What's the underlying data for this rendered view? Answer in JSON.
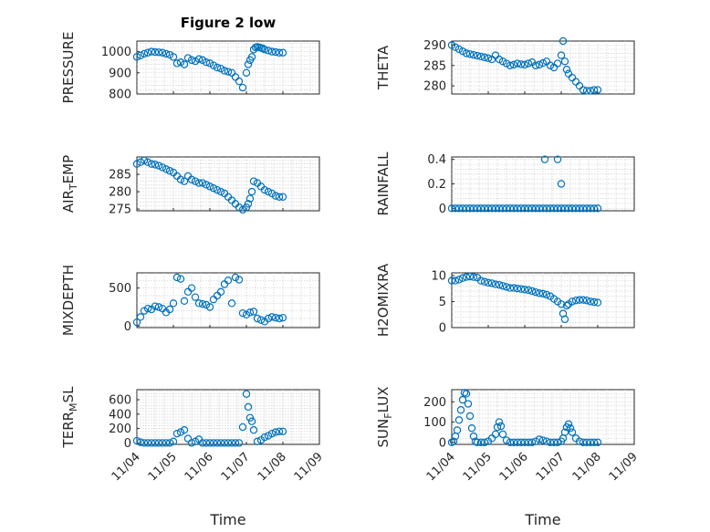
{
  "figure": {
    "title": "Figure 2 low",
    "x_label": "Time",
    "x_ticks": [
      "11/04",
      "11/05",
      "11/06",
      "11/07",
      "11/08",
      "11/09"
    ],
    "marker_color": "#0072bd"
  },
  "chart_data": [
    {
      "type": "scatter",
      "title": "Figure 2 low",
      "ylabel": "PRESSURE",
      "ylim": [
        800,
        1050
      ],
      "yticks": [
        800,
        900,
        1000
      ],
      "xlabel": "",
      "xlim": [
        0,
        5
      ],
      "x": [
        0.0,
        0.1,
        0.2,
        0.3,
        0.4,
        0.5,
        0.6,
        0.7,
        0.8,
        0.9,
        1.0,
        1.1,
        1.2,
        1.3,
        1.4,
        1.5,
        1.6,
        1.7,
        1.8,
        1.9,
        2.0,
        2.1,
        2.2,
        2.3,
        2.4,
        2.5,
        2.6,
        2.7,
        2.8,
        2.9,
        3.0,
        3.05,
        3.1,
        3.15,
        3.2,
        3.25,
        3.3,
        3.35,
        3.4,
        3.45,
        3.5,
        3.6,
        3.7,
        3.8,
        3.9,
        4.0
      ],
      "y": [
        975,
        982,
        990,
        995,
        1000,
        998,
        997,
        995,
        990,
        985,
        975,
        945,
        950,
        940,
        970,
        960,
        955,
        965,
        960,
        950,
        945,
        935,
        925,
        920,
        910,
        905,
        900,
        880,
        860,
        830,
        900,
        940,
        960,
        975,
        1010,
        1020,
        1022,
        1020,
        1018,
        1015,
        1010,
        1005,
        1000,
        998,
        995,
        995
      ]
    },
    {
      "type": "scatter",
      "ylabel": "THETA",
      "ylim": [
        278,
        291
      ],
      "yticks": [
        280,
        285,
        290
      ],
      "xlim": [
        0,
        5
      ],
      "x": [
        0.0,
        0.1,
        0.2,
        0.3,
        0.4,
        0.5,
        0.6,
        0.7,
        0.8,
        0.9,
        1.0,
        1.1,
        1.2,
        1.3,
        1.4,
        1.5,
        1.6,
        1.7,
        1.8,
        1.9,
        2.0,
        2.1,
        2.2,
        2.3,
        2.4,
        2.5,
        2.6,
        2.7,
        2.8,
        2.9,
        3.0,
        3.05,
        3.1,
        3.15,
        3.2,
        3.3,
        3.4,
        3.5,
        3.6,
        3.7,
        3.8,
        3.9,
        4.0
      ],
      "y": [
        290,
        289.5,
        289,
        288.5,
        288,
        287.8,
        287.6,
        287.4,
        287.2,
        287,
        286.8,
        286.5,
        287.5,
        286.5,
        286,
        285.5,
        285,
        285.2,
        285.5,
        285.3,
        285.2,
        285.5,
        285.8,
        285,
        285.2,
        285.6,
        286,
        285,
        284.5,
        285.5,
        287.5,
        291,
        286,
        284,
        283,
        282,
        281,
        280,
        279,
        278.8,
        278.8,
        279,
        279
      ]
    },
    {
      "type": "scatter",
      "ylabel": "AIR_TEMP",
      "ylim": [
        274.5,
        290
      ],
      "yticks": [
        275,
        280,
        285
      ],
      "xlim": [
        0,
        5
      ],
      "x": [
        0.0,
        0.1,
        0.2,
        0.3,
        0.4,
        0.5,
        0.6,
        0.7,
        0.8,
        0.9,
        1.0,
        1.1,
        1.2,
        1.3,
        1.4,
        1.5,
        1.6,
        1.7,
        1.8,
        1.9,
        2.0,
        2.1,
        2.2,
        2.3,
        2.4,
        2.5,
        2.6,
        2.7,
        2.8,
        2.9,
        3.0,
        3.05,
        3.1,
        3.15,
        3.2,
        3.3,
        3.4,
        3.5,
        3.6,
        3.7,
        3.8,
        3.9,
        4.0
      ],
      "y": [
        288,
        288.5,
        289,
        288.5,
        288,
        287.8,
        287.5,
        287,
        286.5,
        286,
        285.5,
        284.5,
        283.5,
        283,
        284.5,
        283.5,
        283,
        282.5,
        282.5,
        282,
        281.5,
        281,
        280.5,
        280,
        279.5,
        278.5,
        277.5,
        276.5,
        275.5,
        274.8,
        275.5,
        276.5,
        278,
        280,
        283,
        282.5,
        281.5,
        280.5,
        280,
        279.5,
        278.8,
        278.5,
        278.5
      ]
    },
    {
      "type": "scatter",
      "ylabel": "RAINFALL",
      "ylim": [
        -0.02,
        0.42
      ],
      "yticks": [
        0,
        0.2,
        0.4
      ],
      "xlim": [
        0,
        5
      ],
      "x": [
        0.0,
        0.1,
        0.2,
        0.3,
        0.4,
        0.5,
        0.6,
        0.7,
        0.8,
        0.9,
        1.0,
        1.1,
        1.2,
        1.3,
        1.4,
        1.5,
        1.6,
        1.7,
        1.8,
        1.9,
        2.0,
        2.1,
        2.2,
        2.3,
        2.4,
        2.5,
        2.6,
        2.7,
        2.8,
        2.9,
        3.0,
        3.1,
        3.2,
        3.3,
        3.4,
        3.5,
        3.6,
        3.7,
        3.8,
        3.9,
        4.0,
        2.55,
        2.9,
        3.0
      ],
      "y": [
        0,
        0,
        0,
        0,
        0,
        0,
        0,
        0,
        0,
        0,
        0,
        0,
        0,
        0,
        0,
        0,
        0,
        0,
        0,
        0,
        0,
        0,
        0,
        0,
        0,
        0,
        0,
        0,
        0,
        0,
        0,
        0,
        0,
        0,
        0,
        0,
        0,
        0,
        0,
        0,
        0,
        0.4,
        0.4,
        0.2
      ]
    },
    {
      "type": "scatter",
      "ylabel": "MIXDEPTH",
      "ylim": [
        -20,
        700
      ],
      "yticks": [
        0,
        500
      ],
      "xlim": [
        0,
        5
      ],
      "x": [
        0.0,
        0.1,
        0.2,
        0.3,
        0.4,
        0.5,
        0.6,
        0.7,
        0.8,
        0.9,
        1.0,
        1.1,
        1.2,
        1.3,
        1.4,
        1.5,
        1.6,
        1.7,
        1.8,
        1.9,
        2.0,
        2.1,
        2.2,
        2.3,
        2.4,
        2.5,
        2.6,
        2.7,
        2.8,
        2.9,
        3.0,
        3.1,
        3.2,
        3.3,
        3.4,
        3.5,
        3.6,
        3.7,
        3.8,
        3.9,
        4.0
      ],
      "y": [
        50,
        120,
        200,
        230,
        220,
        260,
        250,
        230,
        180,
        220,
        300,
        640,
        620,
        330,
        450,
        500,
        380,
        300,
        290,
        280,
        250,
        350,
        400,
        450,
        550,
        600,
        300,
        640,
        610,
        170,
        150,
        180,
        190,
        100,
        80,
        60,
        100,
        120,
        110,
        100,
        110
      ]
    },
    {
      "type": "scatter",
      "ylabel": "H2OMIXRA",
      "ylim": [
        0,
        10.5
      ],
      "yticks": [
        0,
        5,
        10
      ],
      "xlim": [
        0,
        5
      ],
      "x": [
        0.0,
        0.1,
        0.2,
        0.3,
        0.4,
        0.5,
        0.6,
        0.7,
        0.8,
        0.9,
        1.0,
        1.1,
        1.2,
        1.3,
        1.4,
        1.5,
        1.6,
        1.7,
        1.8,
        1.9,
        2.0,
        2.1,
        2.2,
        2.3,
        2.4,
        2.5,
        2.6,
        2.7,
        2.8,
        2.9,
        3.0,
        3.05,
        3.1,
        3.15,
        3.2,
        3.3,
        3.4,
        3.5,
        3.6,
        3.7,
        3.8,
        3.9,
        4.0
      ],
      "y": [
        9,
        9,
        9.2,
        9.5,
        9.7,
        9.8,
        9.7,
        9.6,
        9,
        8.8,
        8.6,
        8.5,
        8.3,
        8.2,
        8.0,
        7.8,
        7.6,
        7.6,
        7.5,
        7.4,
        7.3,
        7.2,
        7.0,
        6.8,
        6.6,
        6.5,
        6.3,
        6.0,
        5.5,
        5.0,
        4.5,
        2.7,
        1.6,
        4.2,
        4.5,
        5.0,
        5.2,
        5.3,
        5.3,
        5.2,
        5.0,
        4.9,
        4.8
      ]
    },
    {
      "type": "scatter",
      "ylabel": "TERR_MSL",
      "ylim": [
        -20,
        740
      ],
      "yticks": [
        0,
        200,
        400,
        600
      ],
      "xlim": [
        0,
        5
      ],
      "x": [
        0.0,
        0.1,
        0.2,
        0.3,
        0.4,
        0.5,
        0.6,
        0.7,
        0.8,
        0.9,
        1.0,
        1.1,
        1.2,
        1.3,
        1.4,
        1.5,
        1.6,
        1.7,
        1.8,
        1.9,
        2.0,
        2.1,
        2.2,
        2.3,
        2.4,
        2.5,
        2.6,
        2.7,
        2.8,
        2.9,
        3.0,
        3.05,
        3.1,
        3.15,
        3.2,
        3.3,
        3.4,
        3.5,
        3.6,
        3.7,
        3.8,
        3.9,
        4.0
      ],
      "y": [
        30,
        10,
        0,
        0,
        0,
        0,
        0,
        0,
        0,
        0,
        20,
        130,
        150,
        180,
        60,
        0,
        20,
        50,
        0,
        0,
        0,
        0,
        0,
        0,
        0,
        0,
        0,
        0,
        0,
        220,
        680,
        500,
        350,
        300,
        180,
        20,
        40,
        80,
        100,
        130,
        150,
        160,
        160
      ]
    },
    {
      "type": "scatter",
      "ylabel": "SUN_FLUX",
      "ylim": [
        -10,
        260
      ],
      "yticks": [
        0,
        100,
        200
      ],
      "xlim": [
        0,
        5
      ],
      "x": [
        0.0,
        0.05,
        0.1,
        0.15,
        0.2,
        0.25,
        0.3,
        0.35,
        0.4,
        0.45,
        0.5,
        0.55,
        0.6,
        0.65,
        0.7,
        0.8,
        0.9,
        1.0,
        1.1,
        1.2,
        1.25,
        1.3,
        1.35,
        1.4,
        1.5,
        1.6,
        1.7,
        1.8,
        1.9,
        2.0,
        2.1,
        2.2,
        2.3,
        2.4,
        2.5,
        2.6,
        2.7,
        2.8,
        2.9,
        3.0,
        3.05,
        3.1,
        3.15,
        3.2,
        3.25,
        3.3,
        3.4,
        3.5,
        3.6,
        3.7,
        3.8,
        3.9,
        4.0
      ],
      "y": [
        0,
        5,
        30,
        60,
        110,
        160,
        210,
        245,
        240,
        190,
        130,
        70,
        30,
        5,
        0,
        0,
        0,
        5,
        20,
        40,
        75,
        100,
        80,
        40,
        10,
        0,
        0,
        0,
        0,
        0,
        0,
        0,
        5,
        15,
        10,
        5,
        0,
        0,
        0,
        5,
        20,
        50,
        75,
        90,
        70,
        50,
        20,
        5,
        0,
        0,
        0,
        0,
        0
      ]
    }
  ]
}
